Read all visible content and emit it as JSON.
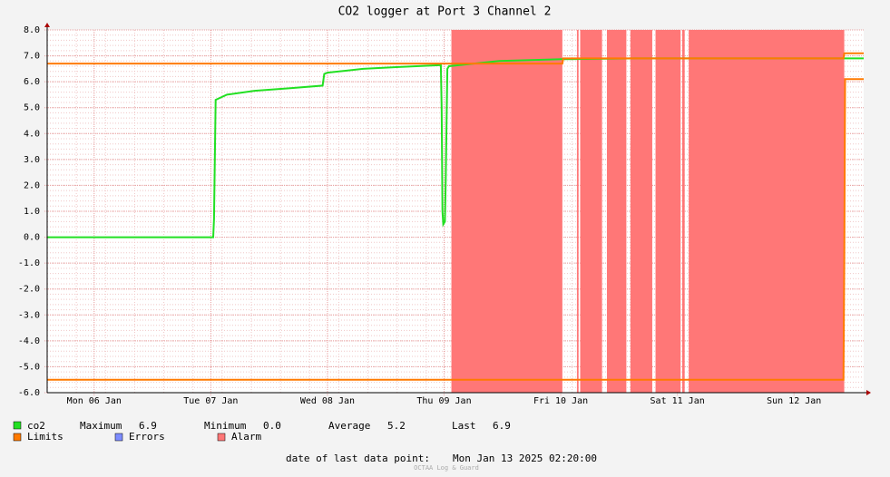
{
  "chart_data": {
    "type": "line",
    "title": "CO2 logger at Port 3 Channel 2",
    "xlim": [
      "2025-01-06 02:20",
      "2025-01-13 02:20"
    ],
    "xticks": [
      {
        "value": "2025-01-06 12:00",
        "label": "Mon 06 Jan"
      },
      {
        "value": "2025-01-07 12:00",
        "label": "Tue 07 Jan"
      },
      {
        "value": "2025-01-08 12:00",
        "label": "Wed 08 Jan"
      },
      {
        "value": "2025-01-09 12:00",
        "label": "Thu 09 Jan"
      },
      {
        "value": "2025-01-10 12:00",
        "label": "Fri 10 Jan"
      },
      {
        "value": "2025-01-11 12:00",
        "label": "Sat 11 Jan"
      },
      {
        "value": "2025-01-12 12:00",
        "label": "Sun 12 Jan"
      }
    ],
    "ylim": [
      -6,
      8
    ],
    "yticks": [
      {
        "value": -6,
        "label": "-6.0"
      },
      {
        "value": -5,
        "label": "-5.0"
      },
      {
        "value": -4,
        "label": "-4.0"
      },
      {
        "value": -3,
        "label": "-3.0"
      },
      {
        "value": -2,
        "label": "-2.0"
      },
      {
        "value": -1,
        "label": "-1.0"
      },
      {
        "value": 0,
        "label": "0.0"
      },
      {
        "value": 1,
        "label": "1.0"
      },
      {
        "value": 2,
        "label": "2.0"
      },
      {
        "value": 3,
        "label": "3.0"
      },
      {
        "value": 4,
        "label": "4.0"
      },
      {
        "value": 5,
        "label": "5.0"
      },
      {
        "value": 6,
        "label": "6.0"
      },
      {
        "value": 7,
        "label": "7.0"
      },
      {
        "value": 8,
        "label": "8.0"
      }
    ],
    "grid": true,
    "series": [
      {
        "name": "co2",
        "color": "#22e022",
        "x": [
          "2025-01-06 02:20",
          "2025-01-07 12:30",
          "2025-01-07 12:40",
          "2025-01-07 13:00",
          "2025-01-07 15:20",
          "2025-01-07 21:00",
          "2025-01-08 04:20",
          "2025-01-08 11:00",
          "2025-01-08 11:20",
          "2025-01-08 12:00",
          "2025-01-08 19:20",
          "2025-01-09 02:40",
          "2025-01-09 11:00",
          "2025-01-09 11:20",
          "2025-01-09 11:30",
          "2025-01-09 11:40",
          "2025-01-09 11:50",
          "2025-01-09 12:10",
          "2025-01-09 12:20",
          "2025-01-09 12:40",
          "2025-01-09 13:00",
          "2025-01-09 23:20",
          "2025-01-10 12:20",
          "2025-01-11 03:20",
          "2025-01-13 02:20"
        ],
        "values": [
          0,
          0,
          0.7,
          5.3,
          5.5,
          5.65,
          5.75,
          5.85,
          6.3,
          6.35,
          6.5,
          6.57,
          6.64,
          6.65,
          5.0,
          1.0,
          0.5,
          0.6,
          2.2,
          6.5,
          6.6,
          6.8,
          6.87,
          6.9,
          6.9
        ]
      },
      {
        "name": "Limits",
        "color": "#ff7a00",
        "x": [
          "2025-01-06 02:20",
          "2025-01-10 12:20",
          "2025-01-10 12:30",
          "2025-01-12 22:10",
          "2025-01-12 22:20",
          "2025-01-13 02:20"
        ],
        "values": [
          6.7,
          6.7,
          6.9,
          6.9,
          7.1,
          7.1
        ],
        "lower_x": [
          "2025-01-06 02:20",
          "2025-01-12 22:10",
          "2025-01-12 22:20",
          "2025-01-12 22:30",
          "2025-01-13 02:20"
        ],
        "lower_values": [
          -5.5,
          -5.5,
          -1.0,
          6.1,
          6.1
        ]
      },
      {
        "name": "Errors",
        "color": "#7d8cff"
      },
      {
        "name": "Alarm",
        "color": "#ff7777",
        "periods": [
          [
            "2025-01-09 13:30",
            "2025-01-10 12:20"
          ],
          [
            "2025-01-10 15:20",
            "2025-01-10 15:40"
          ],
          [
            "2025-01-10 16:00",
            "2025-01-10 20:30"
          ],
          [
            "2025-01-10 21:30",
            "2025-01-11 01:30"
          ],
          [
            "2025-01-11 02:20",
            "2025-01-11 06:50"
          ],
          [
            "2025-01-11 07:30",
            "2025-01-11 12:40"
          ],
          [
            "2025-01-11 13:00",
            "2025-01-11 13:30"
          ],
          [
            "2025-01-11 14:20",
            "2025-01-12 22:20"
          ]
        ]
      }
    ],
    "legend_stats": [
      "Maximum",
      "6.9",
      "Minimum",
      "0.0",
      "Average",
      "5.2",
      "Last",
      "6.9"
    ],
    "footer_label": "date of last data point:",
    "footer_date": "Mon Jan 13 2025 02:20:00",
    "watermark": "OCTAA Log & Guard"
  }
}
